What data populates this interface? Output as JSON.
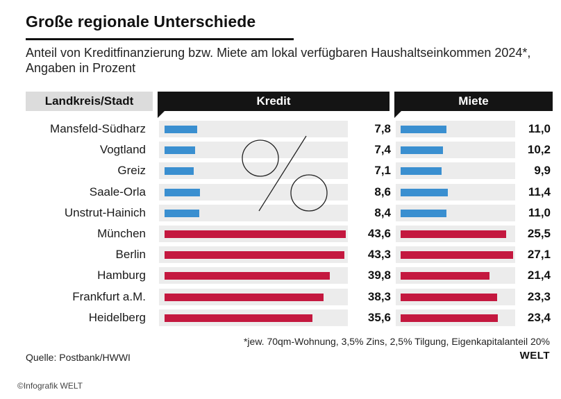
{
  "title": "Große regionale Unterschiede",
  "subtitle": "Anteil von Kreditfinanzierung bzw. Miete am lokal verfügbaren Haushaltseinkommen 2024*, Angaben in Prozent",
  "colors": {
    "east_bar": "#3a8fd0",
    "west_bar": "#c4183f",
    "track": "#ececec",
    "header_dark": "#141414",
    "header_label_bg": "#dcdcdc"
  },
  "chart_data": {
    "type": "bar",
    "orientation": "horizontal",
    "category_header": "Landkreis/Stadt",
    "categories": [
      "Mansfeld-Südharz",
      "Vogtland",
      "Greiz",
      "Saale-Orla",
      "Unstrut-Hainich",
      "München",
      "Berlin",
      "Hamburg",
      "Frankfurt a.M.",
      "Heidelberg"
    ],
    "series": [
      {
        "name": "Kredit",
        "values": [
          7.8,
          7.4,
          7.1,
          8.6,
          8.4,
          43.6,
          43.3,
          39.8,
          38.3,
          35.6
        ],
        "labels": [
          "7,8",
          "7,4",
          "7,1",
          "8,6",
          "8,4",
          "43,6",
          "43,3",
          "39,8",
          "38,3",
          "35,6"
        ]
      },
      {
        "name": "Miete",
        "values": [
          11.0,
          10.2,
          9.9,
          11.4,
          11.0,
          25.5,
          27.1,
          21.4,
          23.3,
          23.4
        ],
        "labels": [
          "11,0",
          "10,2",
          "9,9",
          "11,4",
          "11,0",
          "25,5",
          "27,1",
          "21,4",
          "23,3",
          "23,4"
        ]
      }
    ],
    "bar_color_groups": [
      "east",
      "east",
      "east",
      "east",
      "east",
      "west",
      "west",
      "west",
      "west",
      "west"
    ],
    "xlim": [
      0,
      44
    ]
  },
  "footnote": "*jew. 70qm-Wohnung, 3,5% Zins, 2,5% Tilgung, Eigenkapitalanteil 20%",
  "source": "Quelle: Postbank/HWWI",
  "brand": "WELT",
  "credit": "©Infografik WELT"
}
